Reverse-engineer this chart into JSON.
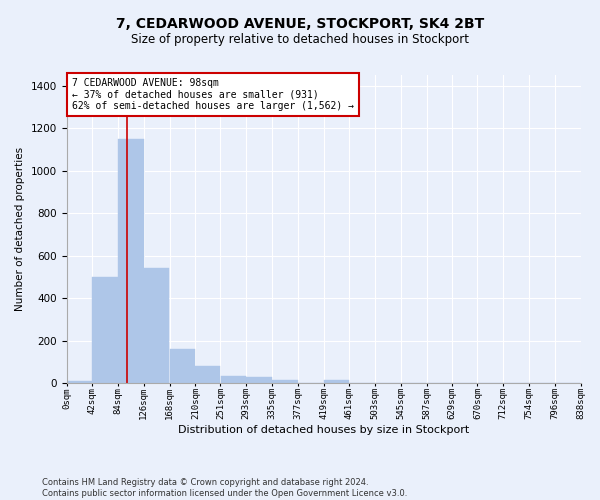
{
  "title": "7, CEDARWOOD AVENUE, STOCKPORT, SK4 2BT",
  "subtitle": "Size of property relative to detached houses in Stockport",
  "xlabel": "Distribution of detached houses by size in Stockport",
  "ylabel": "Number of detached properties",
  "footer_line1": "Contains HM Land Registry data © Crown copyright and database right 2024.",
  "footer_line2": "Contains public sector information licensed under the Open Government Licence v3.0.",
  "annotation_line1": "7 CEDARWOOD AVENUE: 98sqm",
  "annotation_line2": "← 37% of detached houses are smaller (931)",
  "annotation_line3": "62% of semi-detached houses are larger (1,562) →",
  "bar_edges": [
    0,
    42,
    84,
    126,
    168,
    210,
    251,
    293,
    335,
    377,
    419,
    461,
    503,
    545,
    587,
    629,
    670,
    712,
    754,
    796,
    838
  ],
  "bar_heights": [
    10,
    500,
    1150,
    540,
    160,
    80,
    35,
    28,
    15,
    0,
    12,
    0,
    0,
    0,
    0,
    0,
    0,
    0,
    0,
    0
  ],
  "bar_color": "#aec6e8",
  "bar_edgecolor": "#aec6e8",
  "property_line_x": 98,
  "property_line_color": "#cc0000",
  "ylim": [
    0,
    1450
  ],
  "xlim": [
    0,
    838
  ],
  "background_color": "#eaf0fb",
  "plot_bg_color": "#eaf0fb",
  "grid_color": "#ffffff",
  "tick_label_size": 6.5,
  "ytick_label_size": 7.5,
  "annotation_box_edgecolor": "#cc0000",
  "annotation_box_facecolor": "#ffffff",
  "title_fontsize": 10,
  "subtitle_fontsize": 8.5,
  "xlabel_fontsize": 8,
  "ylabel_fontsize": 7.5,
  "footer_fontsize": 6,
  "annotation_fontsize": 7
}
